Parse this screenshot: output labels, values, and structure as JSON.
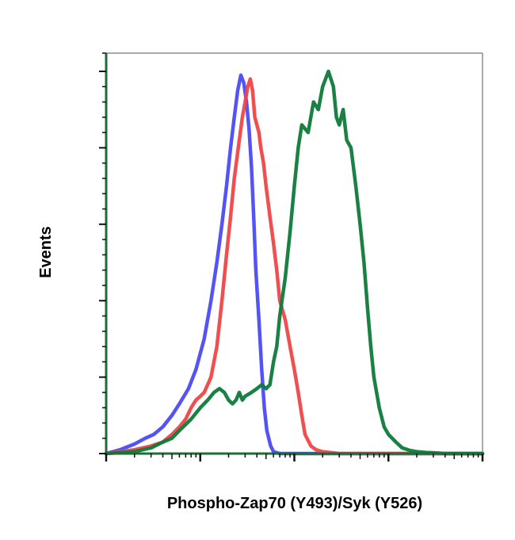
{
  "chart_data": {
    "type": "line",
    "title": "",
    "xlabel": "Phospho-Zap70 (Y493)/Syk (Y526)",
    "ylabel": "Events",
    "x_scale": "log",
    "xlim": [
      1,
      10000
    ],
    "ylim": [
      0,
      100
    ],
    "x_major_ticks": [
      1,
      10,
      100,
      1000,
      10000
    ],
    "y_major_ticks": [
      0,
      20,
      40,
      60,
      80,
      100
    ],
    "grid": false,
    "legend": "none",
    "series": [
      {
        "color": "#4a4af7",
        "x": [
          1,
          1.4,
          2,
          2.6,
          3.2,
          4,
          5,
          6,
          7.5,
          9,
          11,
          13,
          15,
          17,
          19,
          21,
          23,
          25,
          27,
          29,
          31,
          33,
          35,
          37,
          39,
          42,
          45,
          48,
          51,
          56,
          60,
          70,
          100,
          1000,
          10000
        ],
        "y": [
          0,
          1,
          2.5,
          4,
          5,
          7,
          10,
          13,
          17,
          22,
          30,
          40,
          50,
          60,
          70,
          80,
          88,
          95,
          99,
          97,
          92,
          85,
          75,
          62,
          48,
          35,
          22,
          12,
          6,
          2,
          0.5,
          0,
          0,
          0,
          0
        ]
      },
      {
        "color": "#f04646",
        "x": [
          1,
          2,
          3,
          4,
          5,
          6,
          7,
          8,
          9,
          10,
          11,
          13,
          15,
          17,
          19,
          21,
          23,
          26,
          28,
          30,
          32,
          34,
          36,
          38,
          40,
          42,
          44,
          47,
          50,
          55,
          60,
          65,
          70,
          80,
          90,
          100,
          110,
          120,
          130,
          150,
          170,
          200,
          300,
          1000,
          10000
        ],
        "y": [
          0,
          1,
          2,
          3,
          5,
          7,
          9,
          12,
          14,
          15,
          16,
          20,
          28,
          40,
          52,
          62,
          72,
          82,
          88,
          92,
          96,
          98,
          95,
          88,
          86,
          84,
          80,
          76,
          70,
          62,
          55,
          48,
          40,
          35,
          28,
          22,
          16,
          10,
          5,
          2,
          1,
          0.5,
          0,
          0,
          0
        ]
      },
      {
        "color": "#0d7a3a",
        "x": [
          1,
          2,
          3,
          4,
          5,
          6,
          8,
          10,
          12,
          14,
          16,
          18,
          20,
          22,
          24,
          26,
          28,
          30,
          35,
          40,
          45,
          50,
          55,
          60,
          65,
          70,
          80,
          90,
          100,
          110,
          120,
          140,
          160,
          180,
          200,
          230,
          260,
          280,
          300,
          330,
          360,
          400,
          450,
          500,
          550,
          600,
          650,
          700,
          800,
          900,
          1000,
          1200,
          1400,
          1700,
          2000,
          2500,
          3000,
          4000,
          6000,
          10000
        ],
        "y": [
          0,
          0.5,
          1.5,
          3,
          4,
          6,
          9,
          12,
          14,
          16,
          17,
          16,
          14,
          13,
          14,
          16,
          14,
          15,
          16,
          17,
          18,
          17,
          18,
          24,
          28,
          36,
          46,
          58,
          70,
          80,
          86,
          84,
          92,
          90,
          96,
          100,
          96,
          88,
          86,
          90,
          82,
          80,
          70,
          60,
          50,
          38,
          28,
          20,
          12,
          7,
          5,
          3,
          1.5,
          0.8,
          0.5,
          0.3,
          0.2,
          0,
          0,
          0
        ]
      }
    ]
  },
  "style": {
    "axis_color": "#1f6b3a",
    "tick_color": "#111111",
    "frame_color": "#555555",
    "background": "#ffffff"
  }
}
